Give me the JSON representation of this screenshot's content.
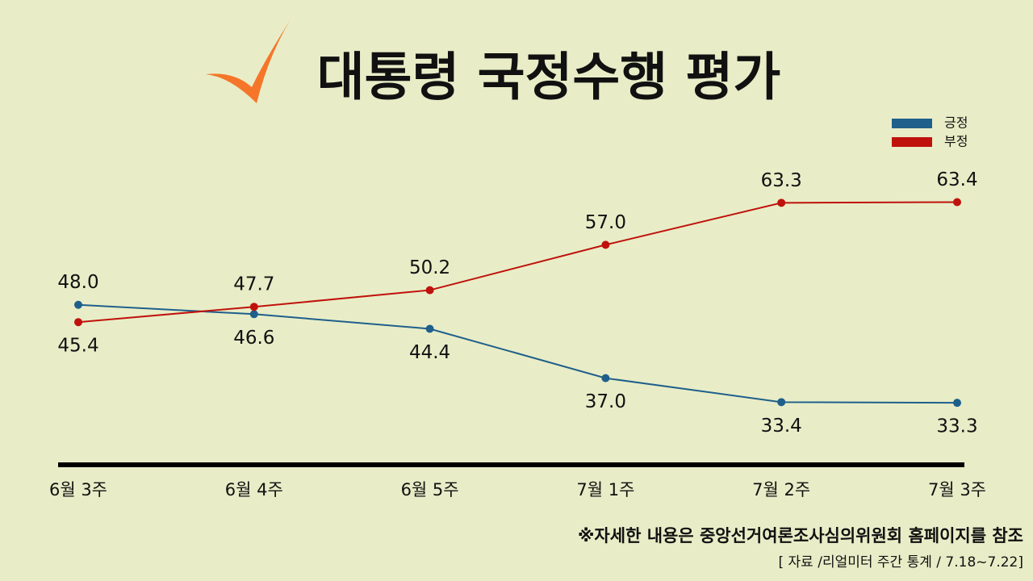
{
  "chart_data": {
    "type": "line",
    "title": "대통령 국정수행 평가",
    "categories": [
      "6월 3주",
      "6월 4주",
      "6월 5주",
      "7월 1주",
      "7월 2주",
      "7월 3주"
    ],
    "series": [
      {
        "name": "긍정",
        "color": "#1f5f8b",
        "values": [
          48.0,
          46.6,
          44.4,
          37.0,
          33.4,
          33.3
        ],
        "value_labels": [
          "48.0",
          "46.6",
          "44.4",
          "37.0",
          "33.4",
          "33.3"
        ]
      },
      {
        "name": "부정",
        "color": "#c0120c",
        "values": [
          45.4,
          47.7,
          50.2,
          57.0,
          63.3,
          63.4
        ],
        "value_labels": [
          "45.4",
          "47.7",
          "50.2",
          "57.0",
          "63.3",
          "63.4"
        ]
      }
    ],
    "ylim": [
      24,
      70
    ],
    "legend": "top-right",
    "note": "※자세한 내용은 중앙선거여론조사심의위원회 홈페이지를 참조",
    "source": "[ 자료 /리얼미터 주간 통계 / 7.18~7.22]"
  }
}
